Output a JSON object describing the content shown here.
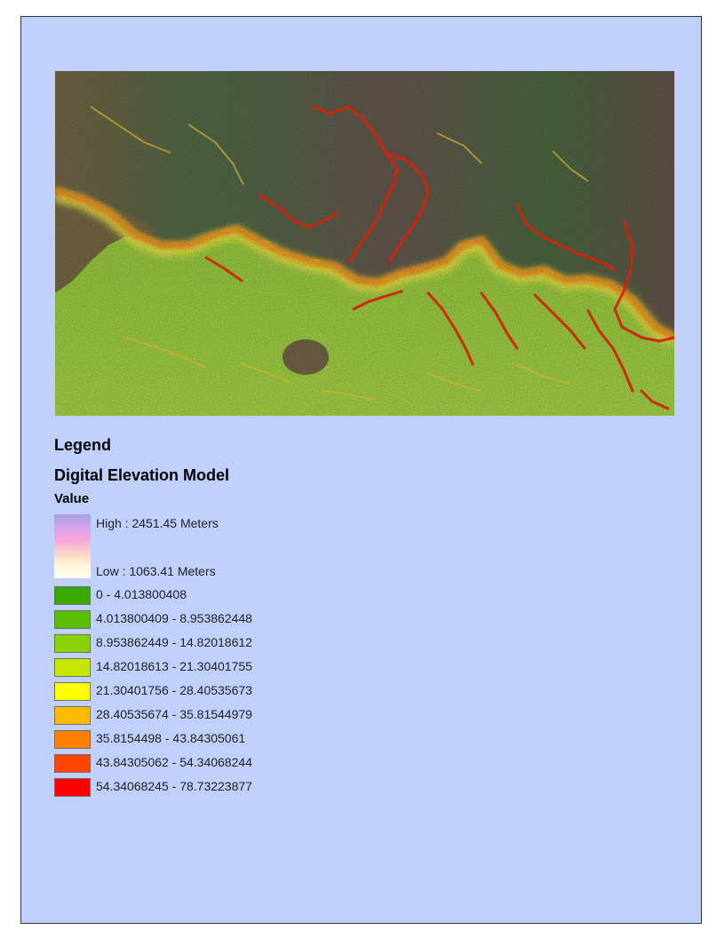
{
  "legend": {
    "title": "Legend",
    "layer_name": "Digital Elevation Model",
    "field_name": "Value",
    "ramp": {
      "high_label": "High : 2451.45 Meters",
      "low_label": "Low : 1063.41 Meters",
      "colors": [
        "#a99ee0",
        "#f7a3dc",
        "#fffcec"
      ]
    },
    "classes": [
      {
        "label": "0 - 4.013800408",
        "color": "#38a800"
      },
      {
        "label": "4.013800409 - 8.953862448",
        "color": "#5cbd00"
      },
      {
        "label": "8.953862449 - 14.82018612",
        "color": "#8bd100"
      },
      {
        "label": "14.82018613 - 21.30401755",
        "color": "#c4e600"
      },
      {
        "label": "21.30401756 - 28.40535673",
        "color": "#ffff00"
      },
      {
        "label": "28.40535674 - 35.81544979",
        "color": "#ffbb00"
      },
      {
        "label": "35.8154498 - 43.84305061",
        "color": "#ff8000"
      },
      {
        "label": "43.84305062 - 54.34068244",
        "color": "#ff4400"
      },
      {
        "label": "54.34068245 - 78.73223877",
        "color": "#ff0000"
      }
    ]
  },
  "map": {
    "colors": {
      "plateau": "#6a6a4c",
      "plateau_green": "#4f6e3e",
      "lowland": "#9ad23c",
      "lowland_light": "#b5e04a",
      "steep": "#ff2a0a",
      "moderate": "#ffb400",
      "gentle": "#ffef3a",
      "background": "#bfd0fc"
    }
  }
}
